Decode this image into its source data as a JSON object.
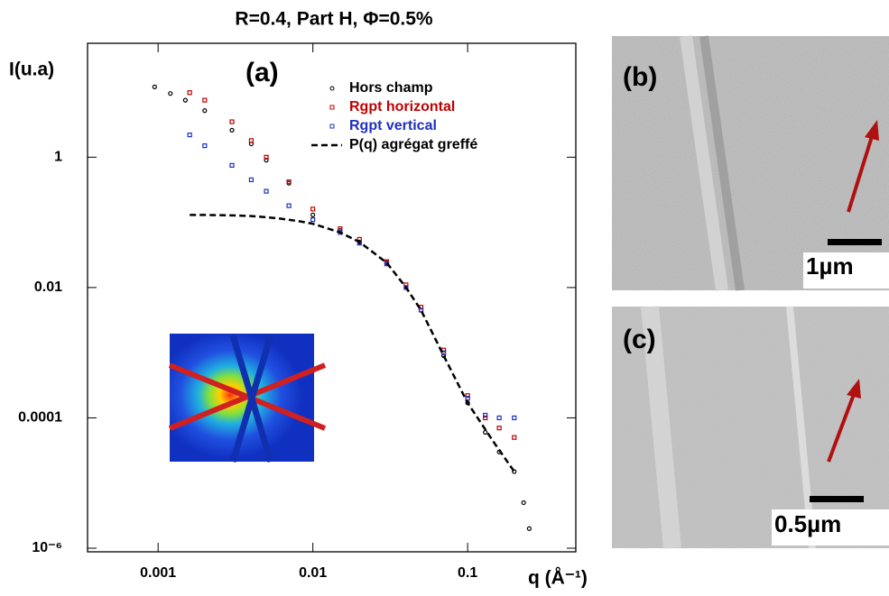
{
  "chart_data": {
    "type": "scatter",
    "title": "R=0.4, Part H, Φ=0.5%",
    "y_label": "I(u.a)",
    "x_label": "q (Å⁻¹)",
    "annotation": "(a)",
    "log_x": true,
    "log_y": true,
    "xlim": [
      0.00035,
      0.5
    ],
    "ylim": [
      8.8e-07,
      56
    ],
    "xticks": [
      0.001,
      0.01,
      0.1
    ],
    "yticks": [
      1,
      0.01,
      0.0001,
      {
        "value": 1e-06,
        "label": "10⁻⁶"
      }
    ],
    "legend": "top-right",
    "series": [
      {
        "name": "Hors champ",
        "color": "#000000",
        "marker": "circle",
        "x": [
          0.00095,
          0.0012,
          0.0015,
          0.002,
          0.003,
          0.004,
          0.005,
          0.007,
          0.01,
          0.015,
          0.02,
          0.03,
          0.04,
          0.05,
          0.07,
          0.1,
          0.13,
          0.16,
          0.2,
          0.23,
          0.25
        ],
        "values": [
          12,
          9.5,
          7.5,
          5.2,
          2.6,
          1.6,
          0.9,
          0.4,
          0.13,
          0.075,
          0.05,
          0.024,
          0.01,
          0.0045,
          0.0009,
          0.00017,
          6e-05,
          3e-05,
          1.5e-05,
          5e-06,
          2e-06
        ]
      },
      {
        "name": "Rgpt horizontal",
        "color": "#c00000",
        "marker": "square",
        "x": [
          0.0016,
          0.002,
          0.003,
          0.004,
          0.005,
          0.007,
          0.01,
          0.015,
          0.02,
          0.03,
          0.04,
          0.05,
          0.07,
          0.1,
          0.13,
          0.16,
          0.2
        ],
        "values": [
          9.8,
          7.5,
          3.5,
          1.8,
          1.0,
          0.42,
          0.16,
          0.08,
          0.055,
          0.025,
          0.011,
          0.005,
          0.0011,
          0.00022,
          0.0001,
          7e-05,
          5e-05
        ]
      },
      {
        "name": "Rgpt vertical",
        "color": "#1f2fc0",
        "marker": "square",
        "x": [
          0.0016,
          0.002,
          0.003,
          0.004,
          0.005,
          0.007,
          0.01,
          0.015,
          0.02,
          0.03,
          0.04,
          0.05,
          0.07,
          0.1,
          0.13,
          0.16,
          0.2
        ],
        "values": [
          2.2,
          1.5,
          0.75,
          0.45,
          0.3,
          0.18,
          0.11,
          0.07,
          0.048,
          0.023,
          0.01,
          0.0045,
          0.001,
          0.0002,
          0.00011,
          0.0001,
          0.0001
        ]
      },
      {
        "name": "P(q) agrégat greffé",
        "color": "#000000",
        "style": "dashed",
        "x": [
          0.0016,
          0.002,
          0.003,
          0.004,
          0.005,
          0.006,
          0.008,
          0.01,
          0.015,
          0.02,
          0.03,
          0.04,
          0.05,
          0.07,
          0.1,
          0.15,
          0.2
        ],
        "values": [
          0.13,
          0.13,
          0.128,
          0.125,
          0.12,
          0.115,
          0.105,
          0.095,
          0.07,
          0.05,
          0.024,
          0.01,
          0.0045,
          0.0009,
          0.00017,
          4e-05,
          1.5e-05
        ]
      }
    ]
  },
  "panels": [
    {
      "label": "(b)",
      "scale_bar": "1µm"
    },
    {
      "label": "(c)",
      "scale_bar": "0.5µm"
    }
  ]
}
